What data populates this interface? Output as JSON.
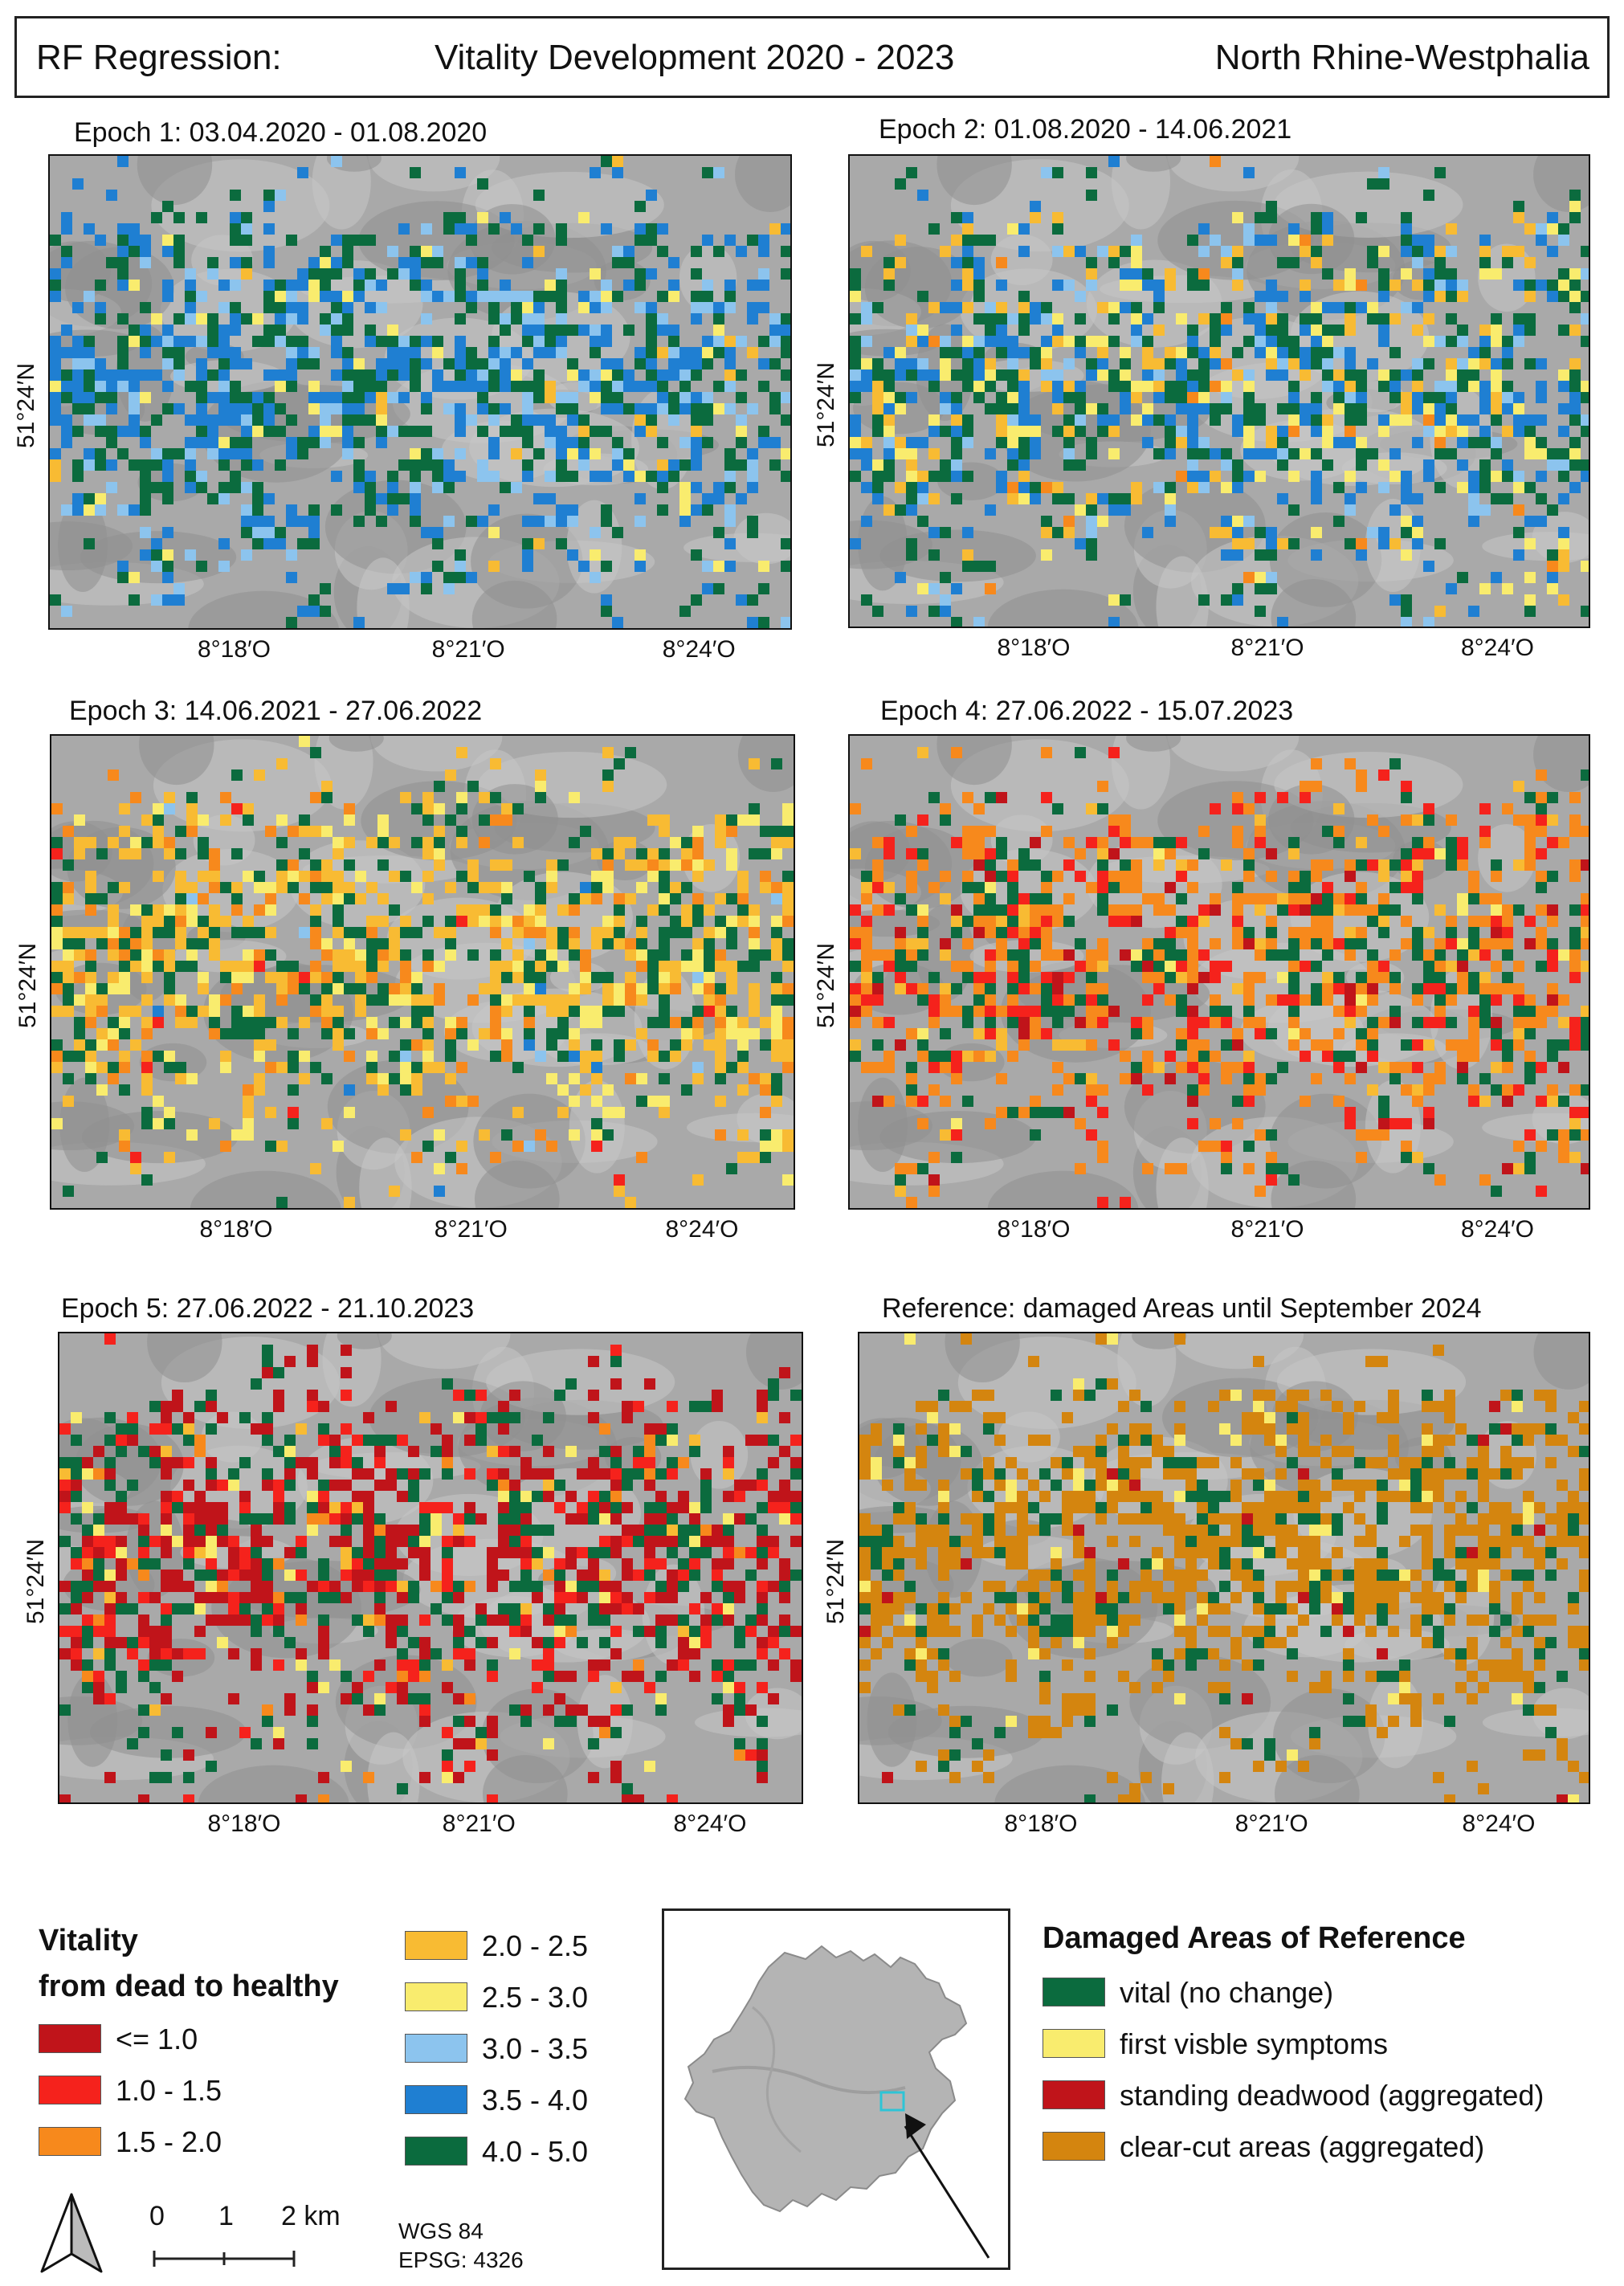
{
  "header": {
    "left": "RF Regression:",
    "center": "Vitality Development 2020 - 2023",
    "right": "North Rhine-Westphalia"
  },
  "maps": [
    {
      "title": "Epoch 1: 03.04.2020 - 01.08.2020",
      "lat": "51°24′N",
      "lons": [
        "8°18′O",
        "8°21′O",
        "8°24′O"
      ]
    },
    {
      "title": "Epoch 2: 01.08.2020 - 14.06.2021",
      "lat": "51°24′N",
      "lons": [
        "8°18′O",
        "8°21′O",
        "8°24′O"
      ]
    },
    {
      "title": "Epoch 3: 14.06.2021 - 27.06.2022",
      "lat": "51°24′N",
      "lons": [
        "8°18′O",
        "8°21′O",
        "8°24′O"
      ]
    },
    {
      "title": "Epoch 4: 27.06.2022 - 15.07.2023",
      "lat": "51°24′N",
      "lons": [
        "8°18′O",
        "8°21′O",
        "8°24′O"
      ]
    },
    {
      "title": "Epoch 5: 27.06.2022 - 21.10.2023",
      "lat": "51°24′N",
      "lons": [
        "8°18′O",
        "8°21′O",
        "8°24′O"
      ]
    },
    {
      "title": "Reference: damaged Areas until September 2024",
      "lat": "51°24′N",
      "lons": [
        "8°18′O",
        "8°21′O",
        "8°24′O"
      ]
    }
  ],
  "vitality_legend": {
    "title_line1": "Vitality",
    "title_line2": "from dead to healthy",
    "items": [
      {
        "label": "<= 1.0",
        "color": "#c0141a"
      },
      {
        "label": "1.0 - 1.5",
        "color": "#f5221c"
      },
      {
        "label": "1.5 - 2.0",
        "color": "#f7891c"
      },
      {
        "label": "2.0 - 2.5",
        "color": "#f8bb33"
      },
      {
        "label": "2.5 - 3.0",
        "color": "#f9ec6e"
      },
      {
        "label": "3.0 - 3.5",
        "color": "#8cc4ee"
      },
      {
        "label": "3.5 - 4.0",
        "color": "#1f7fd2"
      },
      {
        "label": "4.0 - 5.0",
        "color": "#0b6b3e"
      }
    ]
  },
  "reference_legend": {
    "title": "Damaged Areas of Reference",
    "items": [
      {
        "label": "vital (no change)",
        "color": "#0b6b3e"
      },
      {
        "label": "first visble symptoms",
        "color": "#f9ec6e"
      },
      {
        "label": "standing deadwood (aggregated)",
        "color": "#c0141a"
      },
      {
        "label": "clear-cut areas (aggregated)",
        "color": "#d4850f"
      }
    ]
  },
  "scale": {
    "labels": [
      "0",
      "1",
      "2 km"
    ]
  },
  "crs": {
    "line1": "WGS 84",
    "line2": "EPSG: 4326"
  },
  "north_arrow": {
    "icon": "north-arrow-icon"
  }
}
